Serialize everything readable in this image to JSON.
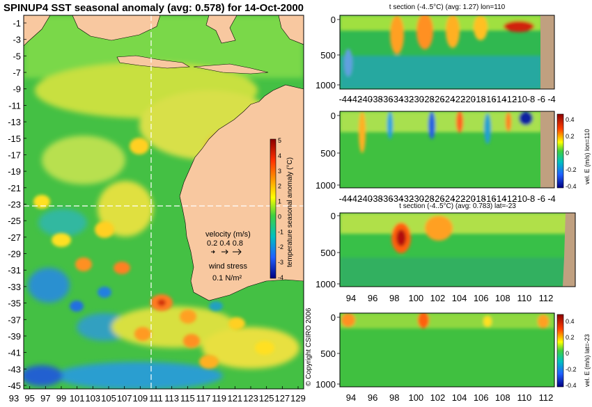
{
  "title": "SPINUP4 SST seasonal anomaly (avg: 0.578) for 14-Oct-2000",
  "map": {
    "lat_ticks": [
      "-1",
      "-3",
      "-5",
      "-7",
      "-9",
      "-11",
      "-13",
      "-15",
      "-17",
      "-19",
      "-21",
      "-23",
      "-25",
      "-27",
      "-29",
      "-31",
      "-33",
      "-35",
      "-37",
      "-39",
      "-41",
      "-43",
      "-45"
    ],
    "lon_ticks": [
      "93",
      "95",
      "97",
      "99",
      "101",
      "103",
      "105",
      "107",
      "109",
      "111",
      "113",
      "115",
      "117",
      "119",
      "121",
      "123",
      "125",
      "127",
      "129"
    ],
    "crosshair_lon": 111,
    "crosshair_lat": -23,
    "colorbar": {
      "label": "temperature seasonal anomaly (°C)",
      "ticks": [
        "5",
        "4",
        "3",
        "2",
        "1",
        "0",
        "-1",
        "-2",
        "-3",
        "-4"
      ]
    },
    "legend": {
      "velocity_title": "velocity (m/s)",
      "velocity_scale": "0.2 0.4 0.8",
      "wind_title": "wind stress",
      "wind_value": "0.1 N/m²"
    }
  },
  "panels": {
    "t_lon": {
      "title": "t section (-4..5°C) (avg: 1.27) lon=110",
      "y_ticks": [
        "0",
        "500",
        "1000"
      ],
      "x_ticks": [
        "-44",
        "-42",
        "-40",
        "-38",
        "-36",
        "-34",
        "-32",
        "-30",
        "-28",
        "-26",
        "-24",
        "-22",
        "-20",
        "-18",
        "-16",
        "-14",
        "-12",
        "-10",
        "-8",
        "-6",
        "-4"
      ]
    },
    "v_lon": {
      "y_ticks": [
        "0",
        "500",
        "1000"
      ],
      "x_ticks": [
        "-44",
        "-42",
        "-40",
        "-38",
        "-36",
        "-34",
        "-32",
        "-30",
        "-28",
        "-26",
        "-24",
        "-22",
        "-20",
        "-18",
        "-16",
        "-14",
        "-12",
        "-10",
        "-8",
        "-6",
        "-4"
      ],
      "colorbar_label": "vel. E (m/s) lon=110",
      "colorbar_ticks": [
        "0.4",
        "0.2",
        "0",
        "-0.2",
        "-0.4"
      ]
    },
    "t_lat": {
      "title": "t section (-4..5°C) (avg: 0.783) lat=-23",
      "y_ticks": [
        "0",
        "500",
        "1000"
      ],
      "x_ticks": [
        "94",
        "96",
        "98",
        "100",
        "102",
        "104",
        "106",
        "108",
        "110",
        "112"
      ]
    },
    "v_lat": {
      "y_ticks": [
        "0",
        "500",
        "1000"
      ],
      "x_ticks": [
        "94",
        "96",
        "98",
        "100",
        "102",
        "104",
        "106",
        "108",
        "110",
        "112"
      ],
      "colorbar_label": "vel. E (m/s) lat=-23",
      "colorbar_ticks": [
        "0.4",
        "0.2",
        "0",
        "-0.2",
        "-0.4"
      ]
    }
  },
  "copyright": "© Copyright CSIRO 2006",
  "colors": {
    "land": "#f8c8a0",
    "ocean_base": "#3fbf3f",
    "crosshair": "#ffffff",
    "section_land": "#c0a080"
  }
}
